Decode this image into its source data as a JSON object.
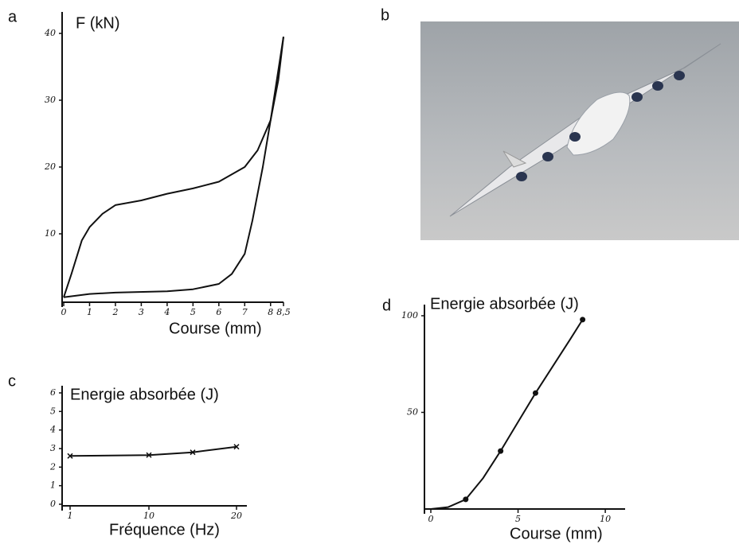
{
  "chart_data": [
    {
      "type": "line",
      "label": "a",
      "ylabel": "F (kN)",
      "xlabel": "Course (mm)",
      "xlim": [
        0,
        8.5
      ],
      "ylim": [
        0,
        40
      ],
      "xticks": [
        0,
        1,
        2,
        3,
        4,
        5,
        6,
        7,
        8,
        {
          "value": 8.5,
          "label": "8,5"
        }
      ],
      "yticks": [
        10,
        20,
        30,
        40
      ],
      "series": [
        {
          "color": "#111111",
          "x": [
            0,
            0.3,
            0.7,
            1,
            1.5,
            2,
            3,
            4,
            5,
            6,
            7,
            7.5,
            8,
            8.3,
            8.5
          ],
          "values": [
            0.5,
            4,
            9,
            11,
            13,
            14.3,
            15,
            16,
            16.8,
            17.8,
            20,
            22.5,
            27,
            33,
            39.5
          ]
        },
        {
          "color": "#111111",
          "x": [
            8.5,
            8.2,
            8,
            7.7,
            7.3,
            7,
            6.5,
            6,
            5,
            4,
            2,
            1,
            0
          ],
          "values": [
            39.5,
            32,
            27,
            20,
            12,
            7,
            4,
            2.5,
            1.7,
            1.4,
            1.2,
            1,
            0.5
          ]
        }
      ]
    },
    {
      "type": "photo",
      "label": "b"
    },
    {
      "type": "line",
      "label": "c",
      "ylabel": "Energie absorbée (J)",
      "xlabel": "Fréquence (Hz)",
      "xlim": [
        0,
        21
      ],
      "ylim": [
        0,
        6
      ],
      "xticks": [
        1,
        10,
        20
      ],
      "yticks": [
        0,
        1,
        2,
        3,
        4,
        5,
        6
      ],
      "series": [
        {
          "color": "#111111",
          "marker": "x",
          "x": [
            1,
            10,
            15,
            20
          ],
          "values": [
            2.6,
            2.65,
            2.8,
            3.1
          ]
        }
      ]
    },
    {
      "type": "line",
      "label": "d",
      "ylabel": "Energie absorbée (J)",
      "xlabel": "Course (mm)",
      "xlim": [
        0,
        11
      ],
      "ylim": [
        0,
        100
      ],
      "xticks": [
        0,
        5,
        10
      ],
      "yticks": [
        50,
        100
      ],
      "series": [
        {
          "color": "#111111",
          "x": [
            0,
            1,
            2,
            3,
            4,
            5,
            6,
            7,
            8,
            8.7
          ],
          "values": [
            0,
            1,
            5,
            16,
            30,
            45,
            60,
            74,
            88,
            98
          ]
        },
        {
          "color": "#111111",
          "marker": "o",
          "x": [
            2,
            4,
            6,
            8.7
          ],
          "values": [
            5,
            30,
            60,
            98
          ]
        }
      ]
    }
  ]
}
